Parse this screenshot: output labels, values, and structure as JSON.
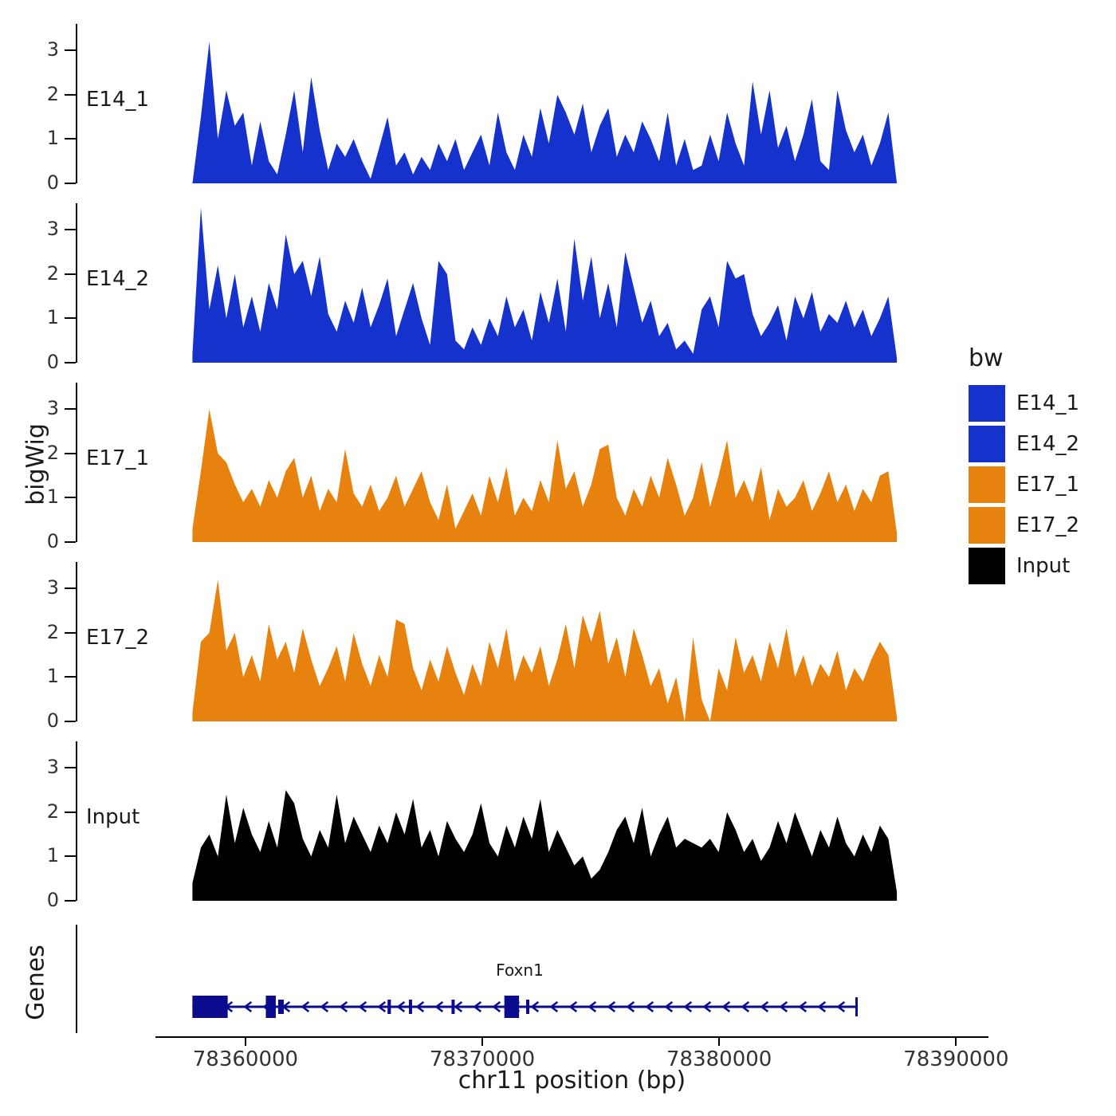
{
  "genes_label": "Genes",
  "legend": {
    "title": "bw",
    "entries": [
      {
        "label": "E14_1",
        "color": "#1532CC"
      },
      {
        "label": "E14_2",
        "color": "#1532CC"
      },
      {
        "label": "E17_1",
        "color": "#E8820F"
      },
      {
        "label": "E17_2",
        "color": "#E8820F"
      },
      {
        "label": "Input",
        "color": "#000000"
      }
    ]
  },
  "chart_data": {
    "type": "area",
    "title": "",
    "xlabel": "chr11 position (bp)",
    "ylabel": "bigWig",
    "x_domain": [
      78356200,
      78391200
    ],
    "x_ticks": [
      78360000,
      78370000,
      78380000,
      78390000
    ],
    "y_ticks": [
      0,
      1,
      2,
      3
    ],
    "y_max": 3.6,
    "data_start": 78357760,
    "data_end": 78387500,
    "tracks": [
      {
        "name": "E14_1",
        "color": "#1532CC",
        "values": [
          0.0,
          1.5,
          3.2,
          1.0,
          2.1,
          1.3,
          1.6,
          0.4,
          1.4,
          0.5,
          0.2,
          1.1,
          2.1,
          0.7,
          2.4,
          1.2,
          0.3,
          0.9,
          0.6,
          1.0,
          0.5,
          0.1,
          0.8,
          1.5,
          0.4,
          0.7,
          0.2,
          0.6,
          0.3,
          0.9,
          0.5,
          1.0,
          0.3,
          0.7,
          1.1,
          0.4,
          1.6,
          0.7,
          0.3,
          1.1,
          0.6,
          1.7,
          0.9,
          2.0,
          1.6,
          1.1,
          1.8,
          0.7,
          1.3,
          1.7,
          0.6,
          1.1,
          0.7,
          1.4,
          1.0,
          0.5,
          1.6,
          0.4,
          1.0,
          0.3,
          0.4,
          1.1,
          0.5,
          1.6,
          0.9,
          0.4,
          2.3,
          1.1,
          2.1,
          0.8,
          1.3,
          0.5,
          1.1,
          1.9,
          0.5,
          0.3,
          2.1,
          1.2,
          0.7,
          1.1,
          0.4,
          0.9,
          1.6,
          0.0
        ]
      },
      {
        "name": "E14_2",
        "color": "#1532CC",
        "values": [
          0.2,
          3.5,
          1.2,
          2.2,
          1.0,
          2.0,
          0.8,
          1.5,
          0.7,
          1.8,
          1.2,
          2.9,
          2.0,
          2.3,
          1.5,
          2.4,
          1.1,
          0.7,
          1.4,
          0.9,
          1.7,
          0.8,
          1.3,
          1.9,
          0.6,
          1.2,
          1.8,
          1.0,
          0.4,
          2.3,
          2.0,
          0.5,
          0.3,
          0.8,
          0.4,
          1.0,
          0.6,
          1.5,
          0.8,
          1.2,
          0.5,
          1.6,
          0.9,
          1.9,
          0.7,
          2.8,
          1.4,
          2.4,
          1.0,
          1.8,
          0.8,
          2.5,
          1.7,
          0.9,
          1.4,
          0.6,
          0.9,
          0.3,
          0.5,
          0.2,
          1.2,
          1.5,
          0.8,
          2.3,
          1.9,
          2.0,
          1.1,
          0.6,
          0.9,
          1.3,
          0.5,
          1.5,
          1.0,
          1.6,
          0.7,
          1.1,
          0.9,
          1.4,
          0.8,
          1.2,
          0.6,
          1.0,
          1.5,
          0.1
        ]
      },
      {
        "name": "E17_1",
        "color": "#E8820F",
        "values": [
          0.3,
          1.6,
          3.0,
          2.0,
          1.8,
          1.3,
          0.9,
          1.2,
          0.8,
          1.4,
          1.0,
          1.6,
          1.9,
          1.0,
          1.5,
          0.7,
          1.2,
          0.9,
          2.1,
          1.1,
          0.8,
          1.3,
          0.7,
          1.0,
          1.5,
          0.8,
          1.2,
          1.6,
          0.9,
          0.5,
          1.3,
          0.3,
          0.7,
          1.1,
          0.6,
          1.5,
          0.9,
          1.7,
          0.6,
          1.0,
          0.7,
          1.4,
          0.9,
          2.3,
          1.2,
          1.6,
          0.8,
          1.3,
          2.1,
          2.2,
          1.0,
          0.6,
          1.2,
          0.8,
          1.5,
          1.0,
          1.9,
          1.3,
          0.6,
          1.0,
          1.8,
          0.8,
          1.5,
          2.3,
          1.0,
          1.4,
          0.9,
          1.7,
          0.5,
          1.2,
          0.8,
          1.0,
          1.4,
          0.7,
          1.1,
          1.6,
          0.9,
          1.3,
          0.7,
          1.2,
          0.9,
          1.5,
          1.6,
          0.2
        ]
      },
      {
        "name": "E17_2",
        "color": "#E8820F",
        "values": [
          0.2,
          1.8,
          2.0,
          3.2,
          1.6,
          2.0,
          1.0,
          1.5,
          0.9,
          2.2,
          1.4,
          1.8,
          1.1,
          2.1,
          1.4,
          0.8,
          1.2,
          1.7,
          0.9,
          2.0,
          1.3,
          0.8,
          1.5,
          1.0,
          2.3,
          2.2,
          1.2,
          0.7,
          1.4,
          0.9,
          1.7,
          1.1,
          0.6,
          1.3,
          0.8,
          1.8,
          1.2,
          2.1,
          0.9,
          1.5,
          1.1,
          1.7,
          0.8,
          1.4,
          2.2,
          1.2,
          2.4,
          1.8,
          2.5,
          1.3,
          1.9,
          1.0,
          2.1,
          1.5,
          0.8,
          1.2,
          0.4,
          1.0,
          0.0,
          1.9,
          0.5,
          0.0,
          1.2,
          0.7,
          1.9,
          1.1,
          1.5,
          0.9,
          1.8,
          1.2,
          2.1,
          1.0,
          1.5,
          0.8,
          1.3,
          1.0,
          1.6,
          0.7,
          1.2,
          0.9,
          1.4,
          1.8,
          1.5,
          0.1
        ]
      },
      {
        "name": "Input",
        "color": "#000000",
        "values": [
          0.4,
          1.2,
          1.5,
          1.0,
          2.4,
          1.3,
          2.1,
          1.5,
          1.1,
          1.8,
          1.2,
          2.5,
          2.2,
          1.4,
          1.0,
          1.6,
          1.2,
          2.4,
          1.3,
          1.9,
          1.5,
          1.1,
          1.7,
          1.3,
          2.0,
          1.5,
          2.3,
          1.2,
          1.6,
          1.0,
          1.8,
          1.4,
          1.1,
          1.5,
          2.2,
          1.3,
          1.0,
          1.7,
          1.2,
          1.9,
          1.4,
          2.3,
          1.1,
          1.6,
          1.2,
          0.8,
          1.0,
          0.5,
          0.7,
          1.1,
          1.6,
          1.9,
          1.3,
          2.1,
          1.0,
          1.5,
          1.9,
          1.2,
          1.4,
          1.3,
          1.2,
          1.4,
          1.1,
          2.0,
          1.6,
          1.1,
          1.4,
          0.9,
          1.2,
          1.8,
          1.3,
          2.0,
          1.5,
          1.0,
          1.6,
          1.2,
          1.9,
          1.3,
          1.0,
          1.5,
          1.1,
          1.7,
          1.4,
          0.2
        ]
      }
    ],
    "gene": {
      "name": "Foxn1",
      "chrom": "chr11",
      "strand": "-",
      "start": 78357760,
      "end": 78385800,
      "color": "#0B0B8F",
      "exons": [
        {
          "start": 78357760,
          "end": 78359250
        },
        {
          "start": 78360860,
          "end": 78361280
        },
        {
          "start": 78361380,
          "end": 78361620
        },
        {
          "start": 78366000,
          "end": 78366140
        },
        {
          "start": 78366900,
          "end": 78367020
        },
        {
          "start": 78368700,
          "end": 78368820
        },
        {
          "start": 78370930,
          "end": 78371550
        },
        {
          "start": 78371850,
          "end": 78371970
        }
      ]
    }
  }
}
